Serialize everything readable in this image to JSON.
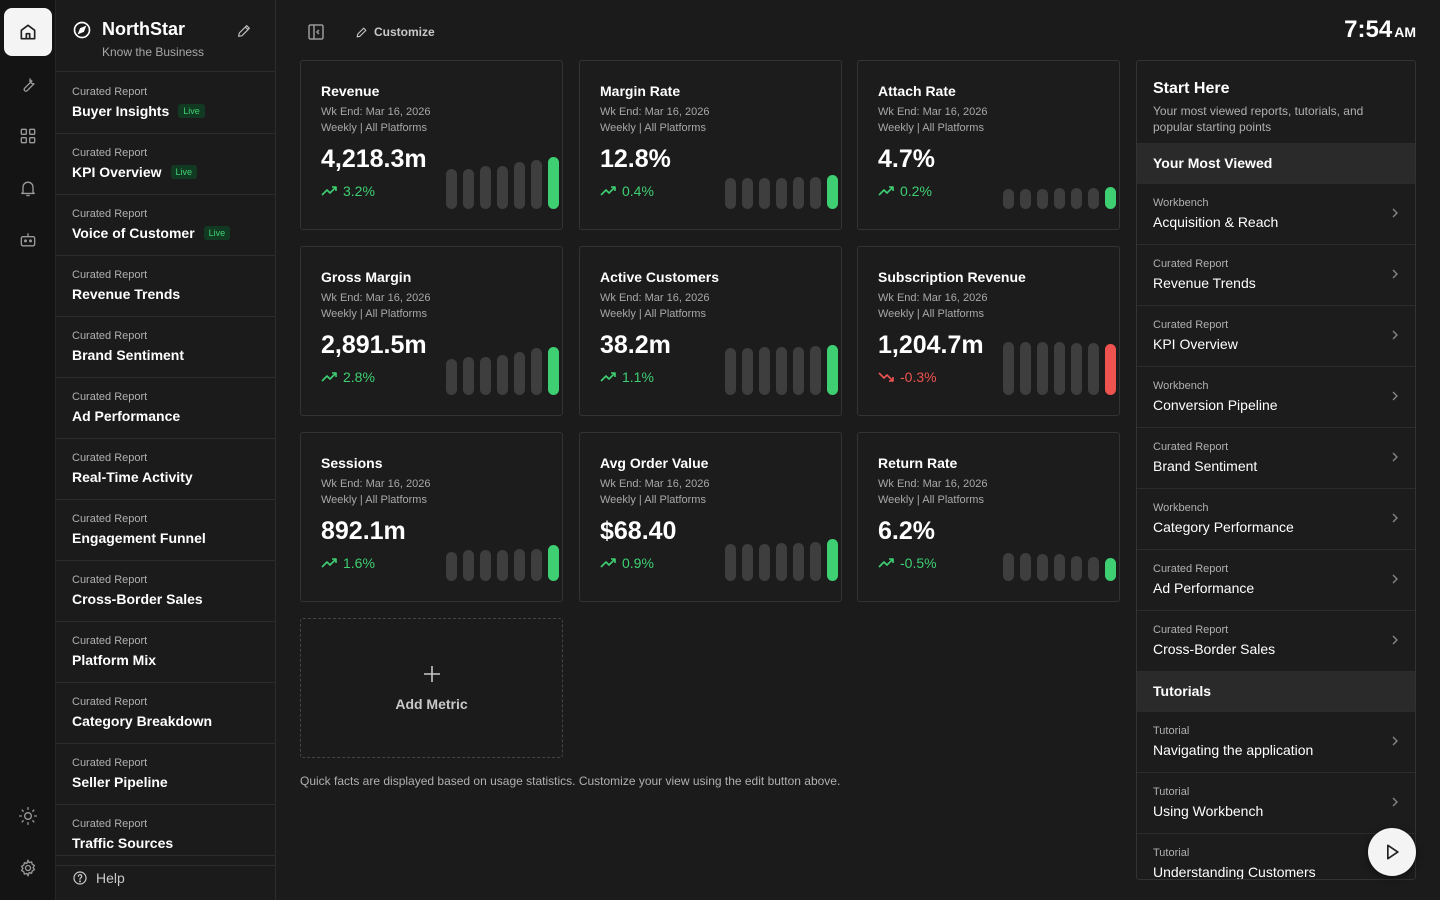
{
  "rail": {
    "items": [
      {
        "name": "home-icon",
        "active": true
      },
      {
        "name": "wrench-icon",
        "active": false
      },
      {
        "name": "grid-icon",
        "active": false
      },
      {
        "name": "bell-icon",
        "active": false
      },
      {
        "name": "robot-icon",
        "active": false
      }
    ],
    "bottom": [
      {
        "name": "sun-icon"
      },
      {
        "name": "gear-icon"
      }
    ]
  },
  "brand": {
    "name": "NorthStar",
    "subtitle": "Know the Business",
    "icon": "compass-icon"
  },
  "reports": [
    {
      "kind": "Curated Report",
      "title": "Buyer Insights",
      "badge": "Live"
    },
    {
      "kind": "Curated Report",
      "title": "KPI Overview",
      "badge": "Live"
    },
    {
      "kind": "Curated Report",
      "title": "Voice of Customer",
      "badge": "Live"
    },
    {
      "kind": "Curated Report",
      "title": "Revenue Trends",
      "badge": ""
    },
    {
      "kind": "Curated Report",
      "title": "Brand Sentiment",
      "badge": ""
    },
    {
      "kind": "Curated Report",
      "title": "Ad Performance",
      "badge": ""
    },
    {
      "kind": "Curated Report",
      "title": "Real-Time Activity",
      "badge": ""
    },
    {
      "kind": "Curated Report",
      "title": "Engagement Funnel",
      "badge": ""
    },
    {
      "kind": "Curated Report",
      "title": "Cross-Border Sales",
      "badge": ""
    },
    {
      "kind": "Curated Report",
      "title": "Platform Mix",
      "badge": ""
    },
    {
      "kind": "Curated Report",
      "title": "Category Breakdown",
      "badge": ""
    },
    {
      "kind": "Curated Report",
      "title": "Seller Pipeline",
      "badge": ""
    },
    {
      "kind": "Curated Report",
      "title": "Traffic Sources",
      "badge": ""
    }
  ],
  "help": {
    "label": "Help"
  },
  "toolbar": {
    "customize_label": "Customize"
  },
  "clock": {
    "time": "7:54",
    "ampm": "AM"
  },
  "colors": {
    "up": "#3ecf72",
    "down": "#ef5350",
    "bar_neutral": "#3e3e3e"
  },
  "metrics": [
    {
      "title": "Revenue",
      "week": "Wk End: Mar 16, 2026",
      "scope": "Weekly | All Platforms",
      "value": "4,218.3m",
      "change": "3.2%",
      "direction": "up",
      "bars": [
        0.72,
        0.72,
        0.77,
        0.77,
        0.84,
        0.88,
        0.93
      ]
    },
    {
      "title": "Margin Rate",
      "week": "Wk End: Mar 16, 2026",
      "scope": "Weekly | All Platforms",
      "value": "12.8%",
      "change": "0.4%",
      "direction": "up",
      "bars": [
        0.55,
        0.55,
        0.55,
        0.55,
        0.57,
        0.57,
        0.6
      ]
    },
    {
      "title": "Attach Rate",
      "week": "Wk End: Mar 16, 2026",
      "scope": "Weekly | All Platforms",
      "value": "4.7%",
      "change": "0.2%",
      "direction": "up",
      "bars": [
        0.35,
        0.35,
        0.35,
        0.37,
        0.37,
        0.37,
        0.4
      ]
    },
    {
      "title": "Gross Margin",
      "week": "Wk End: Mar 16, 2026",
      "scope": "Weekly | All Platforms",
      "value": "2,891.5m",
      "change": "2.8%",
      "direction": "up",
      "bars": [
        0.65,
        0.67,
        0.67,
        0.72,
        0.77,
        0.84,
        0.86
      ]
    },
    {
      "title": "Active Customers",
      "week": "Wk End: Mar 16, 2026",
      "scope": "Weekly | All Platforms",
      "value": "38.2m",
      "change": "1.1%",
      "direction": "up",
      "bars": [
        0.84,
        0.84,
        0.86,
        0.86,
        0.86,
        0.88,
        0.9
      ]
    },
    {
      "title": "Subscription Revenue",
      "week": "Wk End: Mar 16, 2026",
      "scope": "Weekly | All Platforms",
      "value": "1,204.7m",
      "change": "-0.3%",
      "direction": "down",
      "bars": [
        0.95,
        0.95,
        0.95,
        0.95,
        0.93,
        0.93,
        0.91
      ]
    },
    {
      "title": "Sessions",
      "week": "Wk End: Mar 16, 2026",
      "scope": "Weekly | All Platforms",
      "value": "892.1m",
      "change": "1.6%",
      "direction": "up",
      "bars": [
        0.52,
        0.55,
        0.55,
        0.55,
        0.57,
        0.57,
        0.64
      ]
    },
    {
      "title": "Avg Order Value",
      "week": "Wk End: Mar 16, 2026",
      "scope": "Weekly | All Platforms",
      "value": "$68.40",
      "change": "0.9%",
      "direction": "up",
      "bars": [
        0.66,
        0.66,
        0.66,
        0.68,
        0.68,
        0.7,
        0.75
      ]
    },
    {
      "title": "Return Rate",
      "week": "Wk End: Mar 16, 2026",
      "scope": "Weekly | All Platforms",
      "value": "6.2%",
      "change": "-0.5%",
      "direction": "up",
      "bars": [
        0.5,
        0.5,
        0.48,
        0.48,
        0.45,
        0.43,
        0.41
      ]
    }
  ],
  "add_metric": {
    "label": "Add Metric"
  },
  "footnote": "Quick facts are displayed based on usage statistics. Customize your view using the edit button above.",
  "right_panel": {
    "title": "Start Here",
    "description": "Your most viewed reports, tutorials, and popular starting points",
    "sections": [
      {
        "heading": "Your Most Viewed",
        "items": [
          {
            "kind": "Workbench",
            "label": "Acquisition & Reach"
          },
          {
            "kind": "Curated Report",
            "label": "Revenue Trends"
          },
          {
            "kind": "Curated Report",
            "label": "KPI Overview"
          },
          {
            "kind": "Workbench",
            "label": "Conversion Pipeline"
          },
          {
            "kind": "Curated Report",
            "label": "Brand Sentiment"
          },
          {
            "kind": "Workbench",
            "label": "Category Performance"
          },
          {
            "kind": "Curated Report",
            "label": "Ad Performance"
          },
          {
            "kind": "Curated Report",
            "label": "Cross-Border Sales"
          }
        ]
      },
      {
        "heading": "Tutorials",
        "items": [
          {
            "kind": "Tutorial",
            "label": "Navigating the application"
          },
          {
            "kind": "Tutorial",
            "label": "Using Workbench"
          },
          {
            "kind": "Tutorial",
            "label": "Understanding Customers"
          }
        ]
      }
    ]
  }
}
